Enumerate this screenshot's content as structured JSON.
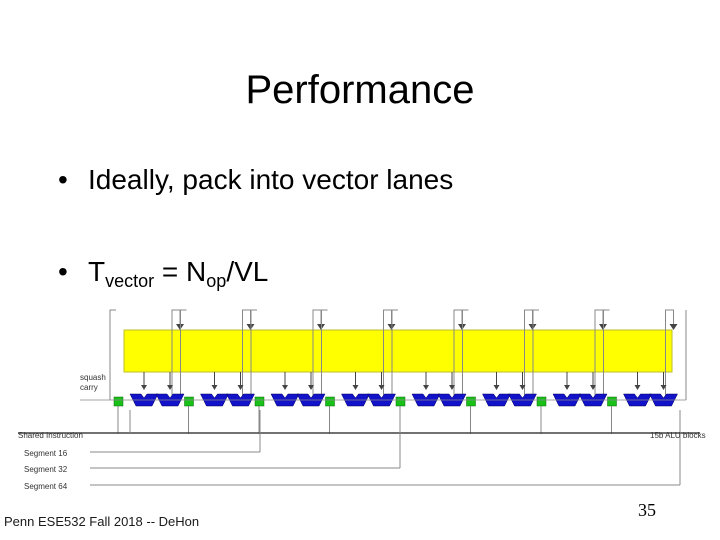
{
  "slide": {
    "title": "Performance",
    "bullets": [
      {
        "marker": "•",
        "text": "Ideally, pack into vector lanes"
      },
      {
        "marker": "•",
        "parts": [
          "T",
          "vector",
          " = N",
          "op",
          "/VL"
        ]
      }
    ],
    "footer": "Penn ESE532 Fall 2018 -- DeHon",
    "page_number": "35"
  },
  "diagram": {
    "labels": {
      "squash_carry": [
        "squash",
        "carry"
      ],
      "shared_instruction": "Shared Instruction",
      "segments": [
        "Segment 16",
        "Segment 32",
        "Segment 64"
      ],
      "alu_blocks": "15b ALU blocks"
    },
    "colors": {
      "register_fill": "#ffff00",
      "register_stroke": "#bdbd2a",
      "alu_fill": "#1212c8",
      "carry_box_fill": "#18c018",
      "wire": "#888888"
    },
    "lane_count": 8
  }
}
